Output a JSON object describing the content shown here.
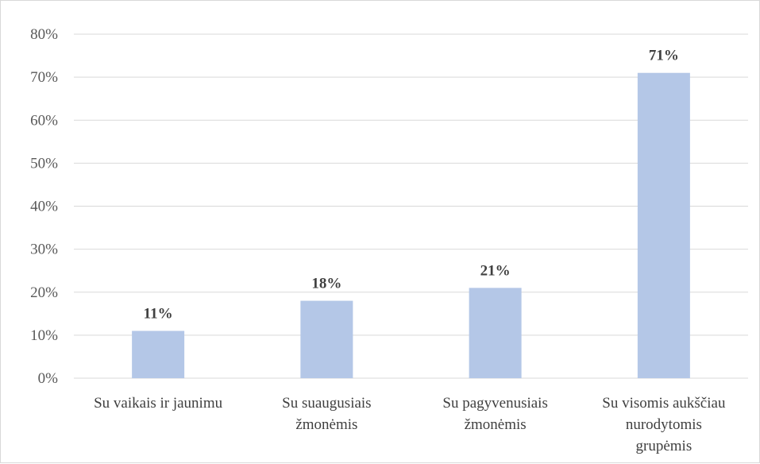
{
  "chart_data": {
    "type": "bar",
    "categories": [
      [
        "Su vaikais ir jaunimu"
      ],
      [
        "Su suaugusiais",
        "žmonėmis"
      ],
      [
        "Su pagyvenusiais",
        "žmonėmis"
      ],
      [
        "Su visomis aukščiau",
        "nurodytomis",
        "grupėmis"
      ]
    ],
    "values": [
      11,
      18,
      21,
      71
    ],
    "data_labels": [
      "11%",
      "18%",
      "21%",
      "71%"
    ],
    "ylim": [
      0,
      80
    ],
    "yticks": [
      "0%",
      "10%",
      "20%",
      "30%",
      "40%",
      "50%",
      "60%",
      "70%",
      "80%"
    ],
    "grid": true,
    "legend": "none",
    "bar_color": "#b4c7e7",
    "grid_color": "#d9d9d9"
  }
}
